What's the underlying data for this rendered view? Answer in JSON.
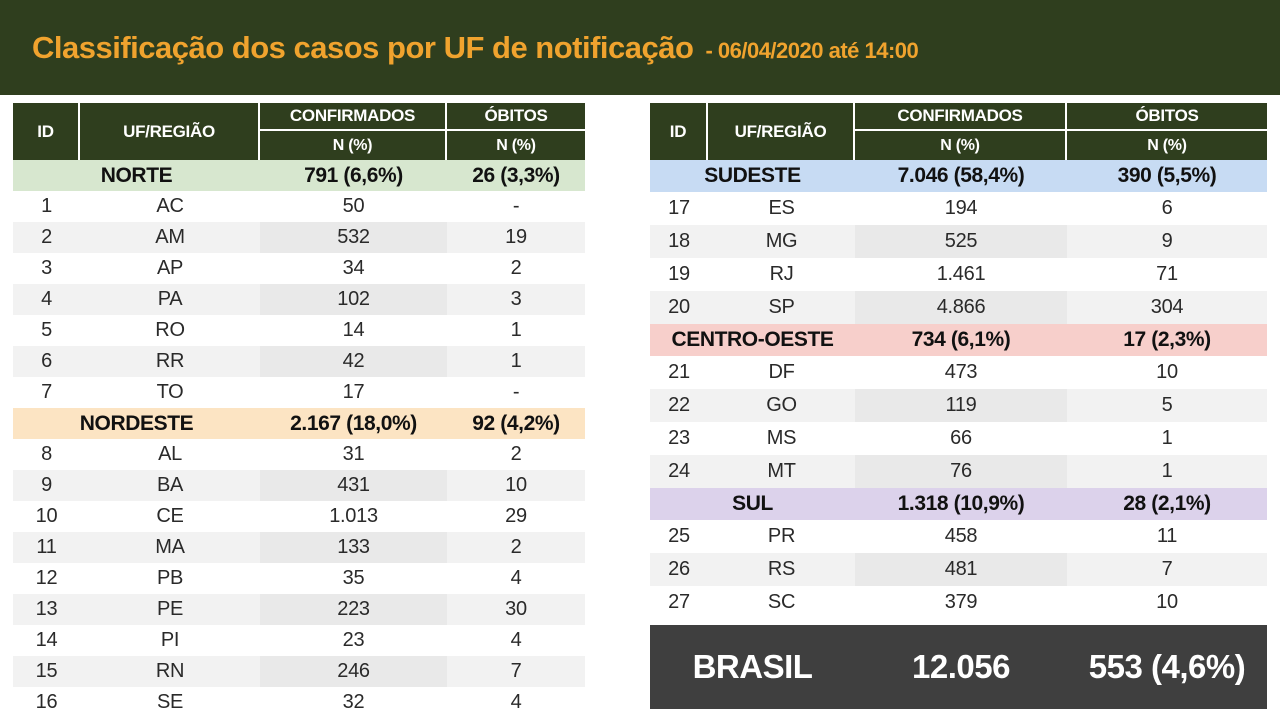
{
  "header": {
    "title": "Classificação dos casos por UF de notificação",
    "subtitle": "- 06/04/2020 até 14:00"
  },
  "columns": {
    "id": "ID",
    "uf": "UF/REGIÃO",
    "confirmed": "CONFIRMADOS",
    "deaths": "ÓBITOS",
    "subheader": "N (%)"
  },
  "colors": {
    "banner_green": "#2f3e1e",
    "title_orange": "#f0a32e",
    "header_cell_green": "#2f3e1e",
    "norte": "#d7e7cf",
    "nordeste": "#fce4c3",
    "sudeste": "#c7dbf3",
    "centro_oeste": "#f7cfcb",
    "sul": "#dcd2eb",
    "brasil_bg": "#3f3f3f",
    "stripe_gray": "#f2f2f2"
  },
  "tables": [
    {
      "sections": [
        {
          "region": "NORTE",
          "confirmed": "791 (6,6%)",
          "deaths": "26 (3,3%)",
          "color": "#d7e7cf",
          "rows": [
            {
              "id": "1",
              "uf": "AC",
              "confirmed": "50",
              "deaths": "-"
            },
            {
              "id": "2",
              "uf": "AM",
              "confirmed": "532",
              "deaths": "19"
            },
            {
              "id": "3",
              "uf": "AP",
              "confirmed": "34",
              "deaths": "2"
            },
            {
              "id": "4",
              "uf": "PA",
              "confirmed": "102",
              "deaths": "3"
            },
            {
              "id": "5",
              "uf": "RO",
              "confirmed": "14",
              "deaths": "1"
            },
            {
              "id": "6",
              "uf": "RR",
              "confirmed": "42",
              "deaths": "1"
            },
            {
              "id": "7",
              "uf": "TO",
              "confirmed": "17",
              "deaths": "-"
            }
          ]
        },
        {
          "region": "NORDESTE",
          "confirmed": "2.167 (18,0%)",
          "deaths": "92 (4,2%)",
          "color": "#fce4c3",
          "rows": [
            {
              "id": "8",
              "uf": "AL",
              "confirmed": "31",
              "deaths": "2"
            },
            {
              "id": "9",
              "uf": "BA",
              "confirmed": "431",
              "deaths": "10"
            },
            {
              "id": "10",
              "uf": "CE",
              "confirmed": "1.013",
              "deaths": "29"
            },
            {
              "id": "11",
              "uf": "MA",
              "confirmed": "133",
              "deaths": "2"
            },
            {
              "id": "12",
              "uf": "PB",
              "confirmed": "35",
              "deaths": "4"
            },
            {
              "id": "13",
              "uf": "PE",
              "confirmed": "223",
              "deaths": "30"
            },
            {
              "id": "14",
              "uf": "PI",
              "confirmed": "23",
              "deaths": "4"
            },
            {
              "id": "15",
              "uf": "RN",
              "confirmed": "246",
              "deaths": "7"
            },
            {
              "id": "16",
              "uf": "SE",
              "confirmed": "32",
              "deaths": "4"
            }
          ]
        }
      ]
    },
    {
      "sections": [
        {
          "region": "SUDESTE",
          "confirmed": "7.046 (58,4%)",
          "deaths": "390 (5,5%)",
          "color": "#c7dbf3",
          "rows": [
            {
              "id": "17",
              "uf": "ES",
              "confirmed": "194",
              "deaths": "6"
            },
            {
              "id": "18",
              "uf": "MG",
              "confirmed": "525",
              "deaths": "9"
            },
            {
              "id": "19",
              "uf": "RJ",
              "confirmed": "1.461",
              "deaths": "71"
            },
            {
              "id": "20",
              "uf": "SP",
              "confirmed": "4.866",
              "deaths": "304"
            }
          ]
        },
        {
          "region": "CENTRO-OESTE",
          "confirmed": "734 (6,1%)",
          "deaths": "17 (2,3%)",
          "color": "#f7cfcb",
          "rows": [
            {
              "id": "21",
              "uf": "DF",
              "confirmed": "473",
              "deaths": "10"
            },
            {
              "id": "22",
              "uf": "GO",
              "confirmed": "119",
              "deaths": "5"
            },
            {
              "id": "23",
              "uf": "MS",
              "confirmed": "66",
              "deaths": "1"
            },
            {
              "id": "24",
              "uf": "MT",
              "confirmed": "76",
              "deaths": "1"
            }
          ]
        },
        {
          "region": "SUL",
          "confirmed": "1.318 (10,9%)",
          "deaths": "28 (2,1%)",
          "color": "#dcd2eb",
          "rows": [
            {
              "id": "25",
              "uf": "PR",
              "confirmed": "458",
              "deaths": "11"
            },
            {
              "id": "26",
              "uf": "RS",
              "confirmed": "481",
              "deaths": "7"
            },
            {
              "id": "27",
              "uf": "SC",
              "confirmed": "379",
              "deaths": "10"
            }
          ]
        }
      ],
      "footer": {
        "label": "BRASIL",
        "confirmed": "12.056",
        "deaths": "553 (4,6%)"
      }
    }
  ]
}
